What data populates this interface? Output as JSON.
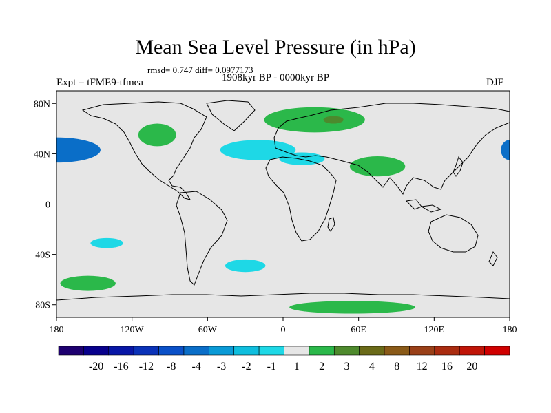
{
  "title": "Mean Sea Level Pressure (in hPa)",
  "stats": "rmsd= 0.747 diff= 0.0977173",
  "period": "1908kyr BP - 0000kyr BP",
  "experiment": "Expt = tFME9-tfmea",
  "season": "DJF",
  "map": {
    "lon_range": [
      -180,
      180
    ],
    "lat_range": [
      -90,
      90
    ],
    "background_color": "#e6e6e6",
    "y_ticks": [
      {
        "lat": 80,
        "label": "80N"
      },
      {
        "lat": 40,
        "label": "40N"
      },
      {
        "lat": 0,
        "label": "0"
      },
      {
        "lat": -40,
        "label": "40S"
      },
      {
        "lat": -80,
        "label": "80S"
      }
    ],
    "x_ticks": [
      {
        "lon": -180,
        "label": "180"
      },
      {
        "lon": -120,
        "label": "120W"
      },
      {
        "lon": -60,
        "label": "60W"
      },
      {
        "lon": 0,
        "label": "0"
      },
      {
        "lon": 60,
        "label": "60E"
      },
      {
        "lon": 120,
        "label": "120E"
      },
      {
        "lon": 180,
        "label": "180"
      }
    ],
    "anomaly_regions": [
      {
        "name": "north-pacific-low-west",
        "level": "-4",
        "color": "#0a6ec8",
        "center": [
          -180,
          43
        ],
        "radius": [
          35,
          10
        ]
      },
      {
        "name": "north-pacific-low-east",
        "level": "-4",
        "color": "#0a6ec8",
        "center": [
          180,
          43
        ],
        "radius": [
          7,
          8
        ]
      },
      {
        "name": "north-atlantic-low",
        "level": "-2",
        "color": "#1ed8e6",
        "center": [
          -20,
          43
        ],
        "radius": [
          30,
          8
        ]
      },
      {
        "name": "mediterranean-low",
        "level": "-2",
        "color": "#1ed8e6",
        "center": [
          15,
          36
        ],
        "radius": [
          18,
          5
        ]
      },
      {
        "name": "south-pacific-low",
        "level": "-2",
        "color": "#1ed8e6",
        "center": [
          -140,
          -31
        ],
        "radius": [
          13,
          4
        ]
      },
      {
        "name": "south-atlantic-low",
        "level": "-2",
        "color": "#1ed8e6",
        "center": [
          -30,
          -49
        ],
        "radius": [
          16,
          5
        ]
      },
      {
        "name": "europe-high",
        "level": "2",
        "color": "#2bb84a",
        "center": [
          25,
          67
        ],
        "radius": [
          40,
          10
        ]
      },
      {
        "name": "scandinavia-core",
        "level": "3",
        "color": "#4c8a2d",
        "center": [
          40,
          67
        ],
        "radius": [
          8,
          3
        ]
      },
      {
        "name": "south-asia-high",
        "level": "2",
        "color": "#2bb84a",
        "center": [
          75,
          30
        ],
        "radius": [
          22,
          8
        ]
      },
      {
        "name": "north-america-high",
        "level": "2",
        "color": "#2bb84a",
        "center": [
          -100,
          55
        ],
        "radius": [
          15,
          9
        ]
      },
      {
        "name": "south-pacific-high",
        "level": "2",
        "color": "#2bb84a",
        "center": [
          -155,
          -63
        ],
        "radius": [
          22,
          6
        ]
      },
      {
        "name": "antarctic-high",
        "level": "2",
        "color": "#2bb84a",
        "center": [
          55,
          -82
        ],
        "radius": [
          50,
          5
        ]
      }
    ]
  },
  "colorbar": {
    "colors": [
      "#1e0070",
      "#08008c",
      "#0816a6",
      "#0a32b8",
      "#0a50c8",
      "#0a6ec8",
      "#0a9ad6",
      "#0fbede",
      "#1ed8e6",
      "#e6e6e6",
      "#2bb84a",
      "#4e8a2d",
      "#6a6a18",
      "#8a5a18",
      "#9a4018",
      "#aa2c10",
      "#c01508",
      "#d00000"
    ],
    "labels": [
      "-20",
      "-16",
      "-12",
      "-8",
      "-4",
      "-3",
      "-2",
      "-1",
      "1",
      "2",
      "3",
      "4",
      "8",
      "12",
      "16",
      "20"
    ]
  }
}
